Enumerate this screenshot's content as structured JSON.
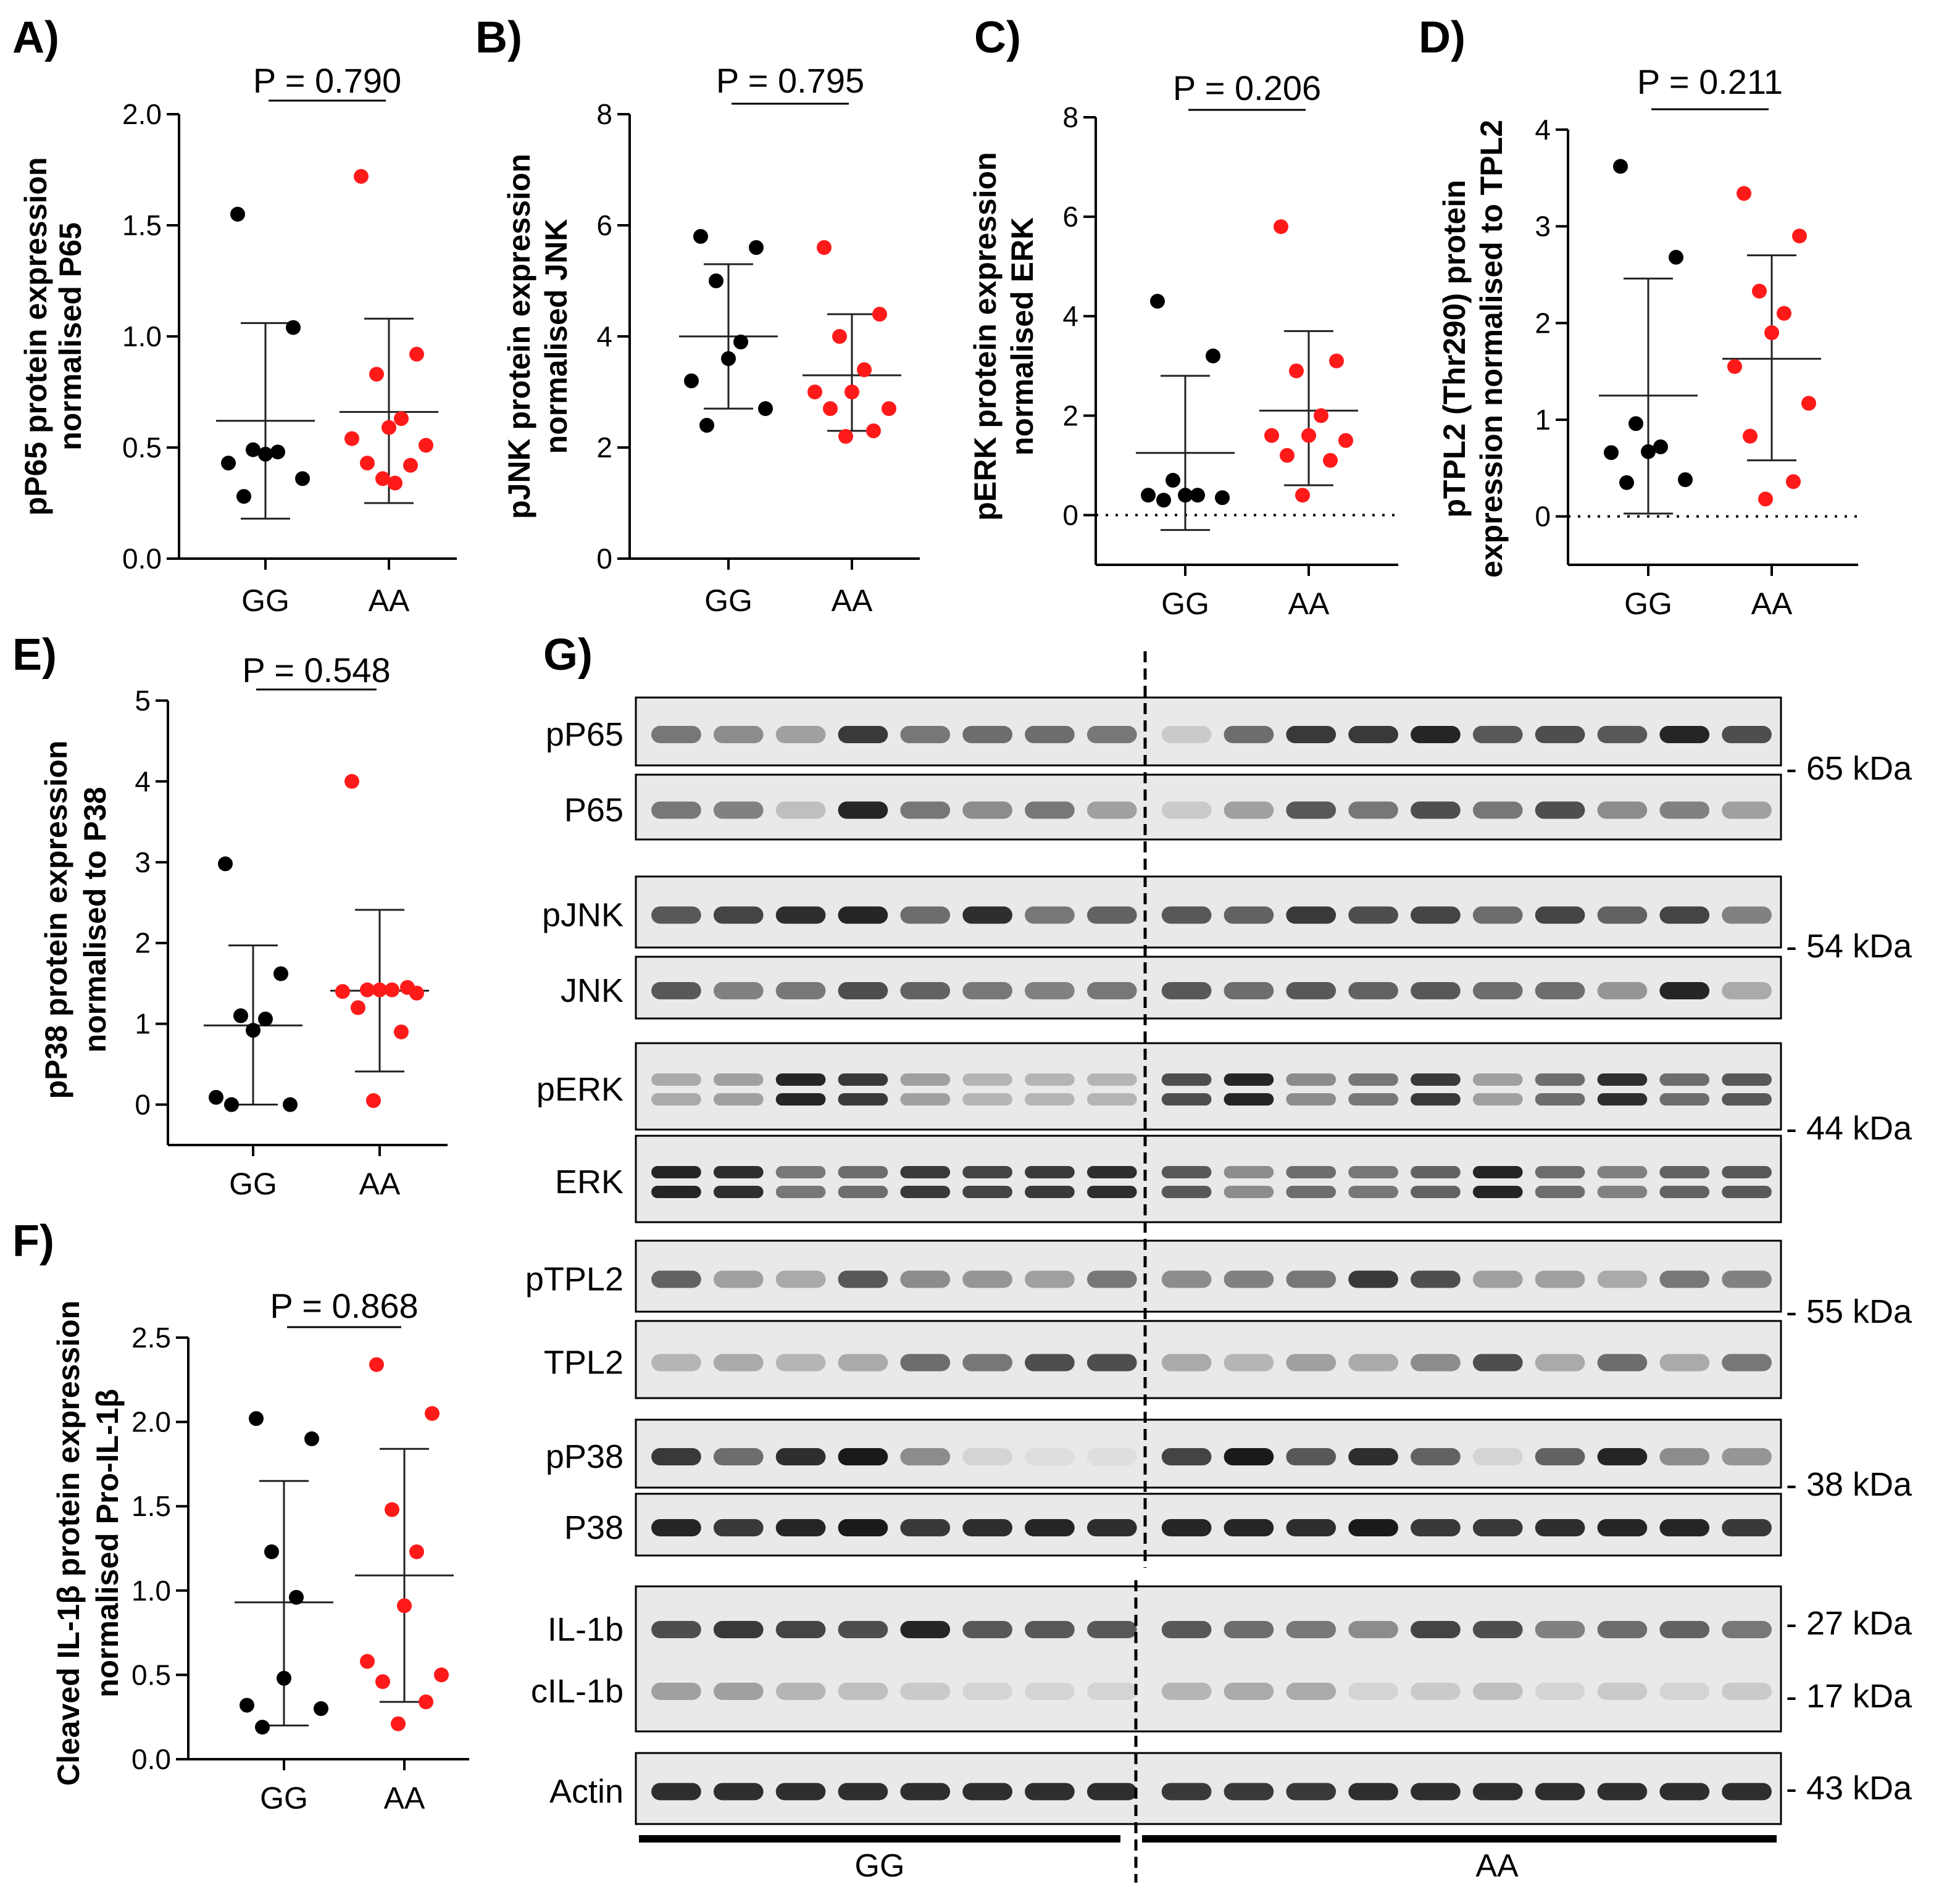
{
  "figure": {
    "colors": {
      "GG": "#000000",
      "AA": "#ff1a1a",
      "axis": "#000000",
      "blot_bg": "#e9e9e9",
      "band": "#1a1a1a"
    }
  },
  "chart_data": [
    {
      "panel": "A)",
      "type": "scatter",
      "title": "P = 0.790",
      "ylabel": "pP65 protein expression normalised P65",
      "categories": [
        "GG",
        "AA"
      ],
      "ylim": [
        0,
        2.0
      ],
      "yticks": [
        "0.0",
        "0.5",
        "1.0",
        "1.5",
        "2.0"
      ],
      "zero_line": false,
      "series": [
        {
          "name": "GG",
          "values": [
            1.55,
            1.04,
            0.49,
            0.48,
            0.47,
            0.43,
            0.36,
            0.28
          ],
          "mean": 0.62,
          "sd_upper": 1.06,
          "sd_lower": 0.18
        },
        {
          "name": "AA",
          "values": [
            1.72,
            0.92,
            0.83,
            0.63,
            0.59,
            0.54,
            0.51,
            0.43,
            0.42,
            0.36,
            0.34
          ],
          "mean": 0.66,
          "sd_upper": 1.08,
          "sd_lower": 0.25
        }
      ]
    },
    {
      "panel": "B)",
      "type": "scatter",
      "title": "P = 0.795",
      "ylabel": "pJNK protein expression normalised JNK",
      "categories": [
        "GG",
        "AA"
      ],
      "ylim": [
        0,
        8
      ],
      "yticks": [
        "0",
        "2",
        "4",
        "6",
        "8"
      ],
      "zero_line": false,
      "series": [
        {
          "name": "GG",
          "values": [
            5.8,
            5.6,
            5.0,
            3.9,
            3.6,
            3.2,
            2.7,
            2.4
          ],
          "mean": 4.0,
          "sd_upper": 5.3,
          "sd_lower": 2.7
        },
        {
          "name": "AA",
          "values": [
            5.6,
            4.4,
            4.0,
            3.4,
            3.0,
            3.0,
            2.7,
            2.7,
            2.3,
            2.2
          ],
          "mean": 3.3,
          "sd_upper": 4.4,
          "sd_lower": 2.3
        }
      ]
    },
    {
      "panel": "C)",
      "type": "scatter",
      "title": "P = 0.206",
      "ylabel": "pERK protein expression normalised ERK",
      "categories": [
        "GG",
        "AA"
      ],
      "ylim": [
        -1,
        8
      ],
      "yticks": [
        "0",
        "2",
        "4",
        "6",
        "8"
      ],
      "zero_line": true,
      "series": [
        {
          "name": "GG",
          "values": [
            4.3,
            3.2,
            0.7,
            0.4,
            0.4,
            0.4,
            0.35,
            0.3
          ],
          "mean": 1.25,
          "sd_upper": 2.8,
          "sd_lower": -0.3
        },
        {
          "name": "AA",
          "values": [
            5.8,
            3.1,
            2.9,
            2.0,
            1.6,
            1.6,
            1.5,
            1.2,
            1.1,
            0.4
          ],
          "mean": 2.1,
          "sd_upper": 3.7,
          "sd_lower": 0.6
        }
      ]
    },
    {
      "panel": "D)",
      "type": "scatter",
      "title": "P = 0.211",
      "ylabel": "pTPL2 (Thr290) protein expression normalised to TPL2",
      "categories": [
        "GG",
        "AA"
      ],
      "ylim": [
        -0.5,
        4
      ],
      "yticks": [
        "0",
        "1",
        "2",
        "3",
        "4"
      ],
      "zero_line": true,
      "series": [
        {
          "name": "GG",
          "values": [
            3.62,
            2.68,
            0.96,
            0.72,
            0.67,
            0.66,
            0.38,
            0.35
          ],
          "mean": 1.25,
          "sd_upper": 2.46,
          "sd_lower": 0.03
        },
        {
          "name": "AA",
          "values": [
            3.34,
            2.9,
            2.33,
            2.1,
            1.9,
            1.55,
            1.17,
            0.83,
            0.36,
            0.18
          ],
          "mean": 1.63,
          "sd_upper": 2.7,
          "sd_lower": 0.58
        }
      ]
    },
    {
      "panel": "E)",
      "type": "scatter",
      "title": "P = 0.548",
      "ylabel": "pP38 protein expression normalised to P38",
      "categories": [
        "GG",
        "AA"
      ],
      "ylim": [
        -0.5,
        5
      ],
      "yticks": [
        "0",
        "1",
        "2",
        "3",
        "4",
        "5"
      ],
      "zero_line": false,
      "series": [
        {
          "name": "GG",
          "values": [
            2.98,
            1.62,
            1.1,
            1.06,
            0.92,
            0.09,
            0.0,
            0.0
          ],
          "mean": 0.98,
          "sd_upper": 1.97,
          "sd_lower": 0.0
        },
        {
          "name": "AA",
          "values": [
            4.0,
            1.45,
            1.42,
            1.42,
            1.42,
            1.4,
            1.38,
            1.2,
            0.9,
            0.05
          ],
          "mean": 1.41,
          "sd_upper": 2.41,
          "sd_lower": 0.41
        }
      ]
    },
    {
      "panel": "F)",
      "type": "scatter",
      "title": "P = 0.868",
      "ylabel": "Cleaved IL-1β protein expression normalised Pro-IL-1β",
      "categories": [
        "GG",
        "AA"
      ],
      "ylim": [
        0,
        2.5
      ],
      "yticks": [
        "0.0",
        "0.5",
        "1.0",
        "1.5",
        "2.0",
        "2.5"
      ],
      "zero_line": false,
      "series": [
        {
          "name": "GG",
          "values": [
            2.02,
            1.9,
            1.23,
            0.96,
            0.48,
            0.32,
            0.3,
            0.19
          ],
          "mean": 0.93,
          "sd_upper": 1.65,
          "sd_lower": 0.2
        },
        {
          "name": "AA",
          "values": [
            2.34,
            2.05,
            1.48,
            1.23,
            0.91,
            0.58,
            0.5,
            0.46,
            0.34,
            0.21
          ],
          "mean": 1.09,
          "sd_upper": 1.84,
          "sd_lower": 0.34
        }
      ]
    }
  ],
  "blot": {
    "panel": "G)",
    "groups": [
      "GG",
      "AA"
    ],
    "rows": [
      {
        "label": "pP65",
        "intensity": [
          0.55,
          0.45,
          0.35,
          0.85,
          0.55,
          0.6,
          0.6,
          0.55,
          0.15,
          0.6,
          0.85,
          0.85,
          0.95,
          0.7,
          0.75,
          0.7,
          0.95,
          0.75
        ],
        "double": false
      },
      {
        "label": "P65",
        "intensity": [
          0.55,
          0.5,
          0.2,
          0.95,
          0.55,
          0.45,
          0.55,
          0.35,
          0.15,
          0.35,
          0.7,
          0.55,
          0.75,
          0.55,
          0.75,
          0.45,
          0.5,
          0.35
        ],
        "double": false
      },
      {
        "label": "pJNK",
        "intensity": [
          0.7,
          0.8,
          0.9,
          0.95,
          0.6,
          0.9,
          0.55,
          0.65,
          0.7,
          0.65,
          0.85,
          0.75,
          0.8,
          0.6,
          0.8,
          0.65,
          0.8,
          0.5
        ],
        "double": false
      },
      {
        "label": "JNK",
        "intensity": [
          0.7,
          0.5,
          0.55,
          0.75,
          0.65,
          0.55,
          0.5,
          0.55,
          0.7,
          0.6,
          0.7,
          0.65,
          0.7,
          0.6,
          0.6,
          0.4,
          0.95,
          0.3
        ],
        "double": false
      },
      {
        "label": "pERK",
        "intensity": [
          0.3,
          0.35,
          0.95,
          0.85,
          0.35,
          0.25,
          0.25,
          0.25,
          0.75,
          0.95,
          0.45,
          0.55,
          0.85,
          0.35,
          0.6,
          0.9,
          0.6,
          0.7
        ],
        "double": true
      },
      {
        "label": "ERK",
        "intensity": [
          0.95,
          0.9,
          0.55,
          0.6,
          0.85,
          0.8,
          0.85,
          0.9,
          0.7,
          0.45,
          0.6,
          0.55,
          0.65,
          0.95,
          0.6,
          0.5,
          0.65,
          0.7
        ],
        "double": true
      },
      {
        "label": "pTPL2",
        "intensity": [
          0.65,
          0.35,
          0.3,
          0.7,
          0.45,
          0.4,
          0.35,
          0.55,
          0.45,
          0.5,
          0.55,
          0.85,
          0.75,
          0.35,
          0.35,
          0.3,
          0.55,
          0.5
        ],
        "double": false
      },
      {
        "label": "TPL2",
        "intensity": [
          0.25,
          0.3,
          0.25,
          0.3,
          0.6,
          0.55,
          0.75,
          0.75,
          0.3,
          0.25,
          0.35,
          0.3,
          0.45,
          0.75,
          0.3,
          0.6,
          0.3,
          0.55
        ],
        "double": false
      },
      {
        "label": "pP38",
        "intensity": [
          0.85,
          0.6,
          0.9,
          1.0,
          0.45,
          0.1,
          0.05,
          0.05,
          0.8,
          1.0,
          0.7,
          0.9,
          0.65,
          0.1,
          0.65,
          0.95,
          0.45,
          0.4
        ],
        "double": false
      },
      {
        "label": "P38",
        "intensity": [
          0.95,
          0.85,
          0.95,
          1.0,
          0.85,
          0.9,
          0.95,
          0.9,
          0.95,
          0.95,
          0.9,
          1.0,
          0.85,
          0.85,
          0.9,
          0.95,
          0.95,
          0.85
        ],
        "double": false
      },
      {
        "label": "IL-1b",
        "intensity": [
          0.75,
          0.85,
          0.8,
          0.75,
          0.95,
          0.7,
          0.7,
          0.7,
          0.7,
          0.6,
          0.55,
          0.45,
          0.8,
          0.75,
          0.5,
          0.6,
          0.65,
          0.55
        ],
        "double": false
      },
      {
        "label": "cIL-1b",
        "intensity": [
          0.35,
          0.35,
          0.25,
          0.2,
          0.15,
          0.1,
          0.1,
          0.1,
          0.25,
          0.3,
          0.3,
          0.1,
          0.15,
          0.2,
          0.1,
          0.15,
          0.1,
          0.15
        ],
        "double": false
      },
      {
        "label": "Actin",
        "intensity": [
          0.9,
          0.9,
          0.9,
          0.9,
          0.9,
          0.9,
          0.9,
          0.9,
          0.85,
          0.85,
          0.85,
          0.9,
          0.9,
          0.9,
          0.9,
          0.9,
          0.9,
          0.9
        ],
        "double": false
      }
    ],
    "markers": [
      "- 65 kDa",
      "- 54 kDa",
      "- 44 kDa",
      "- 55 kDa",
      "- 38 kDa",
      "- 27 kDa",
      "- 17 kDa",
      "- 43 kDa"
    ]
  }
}
